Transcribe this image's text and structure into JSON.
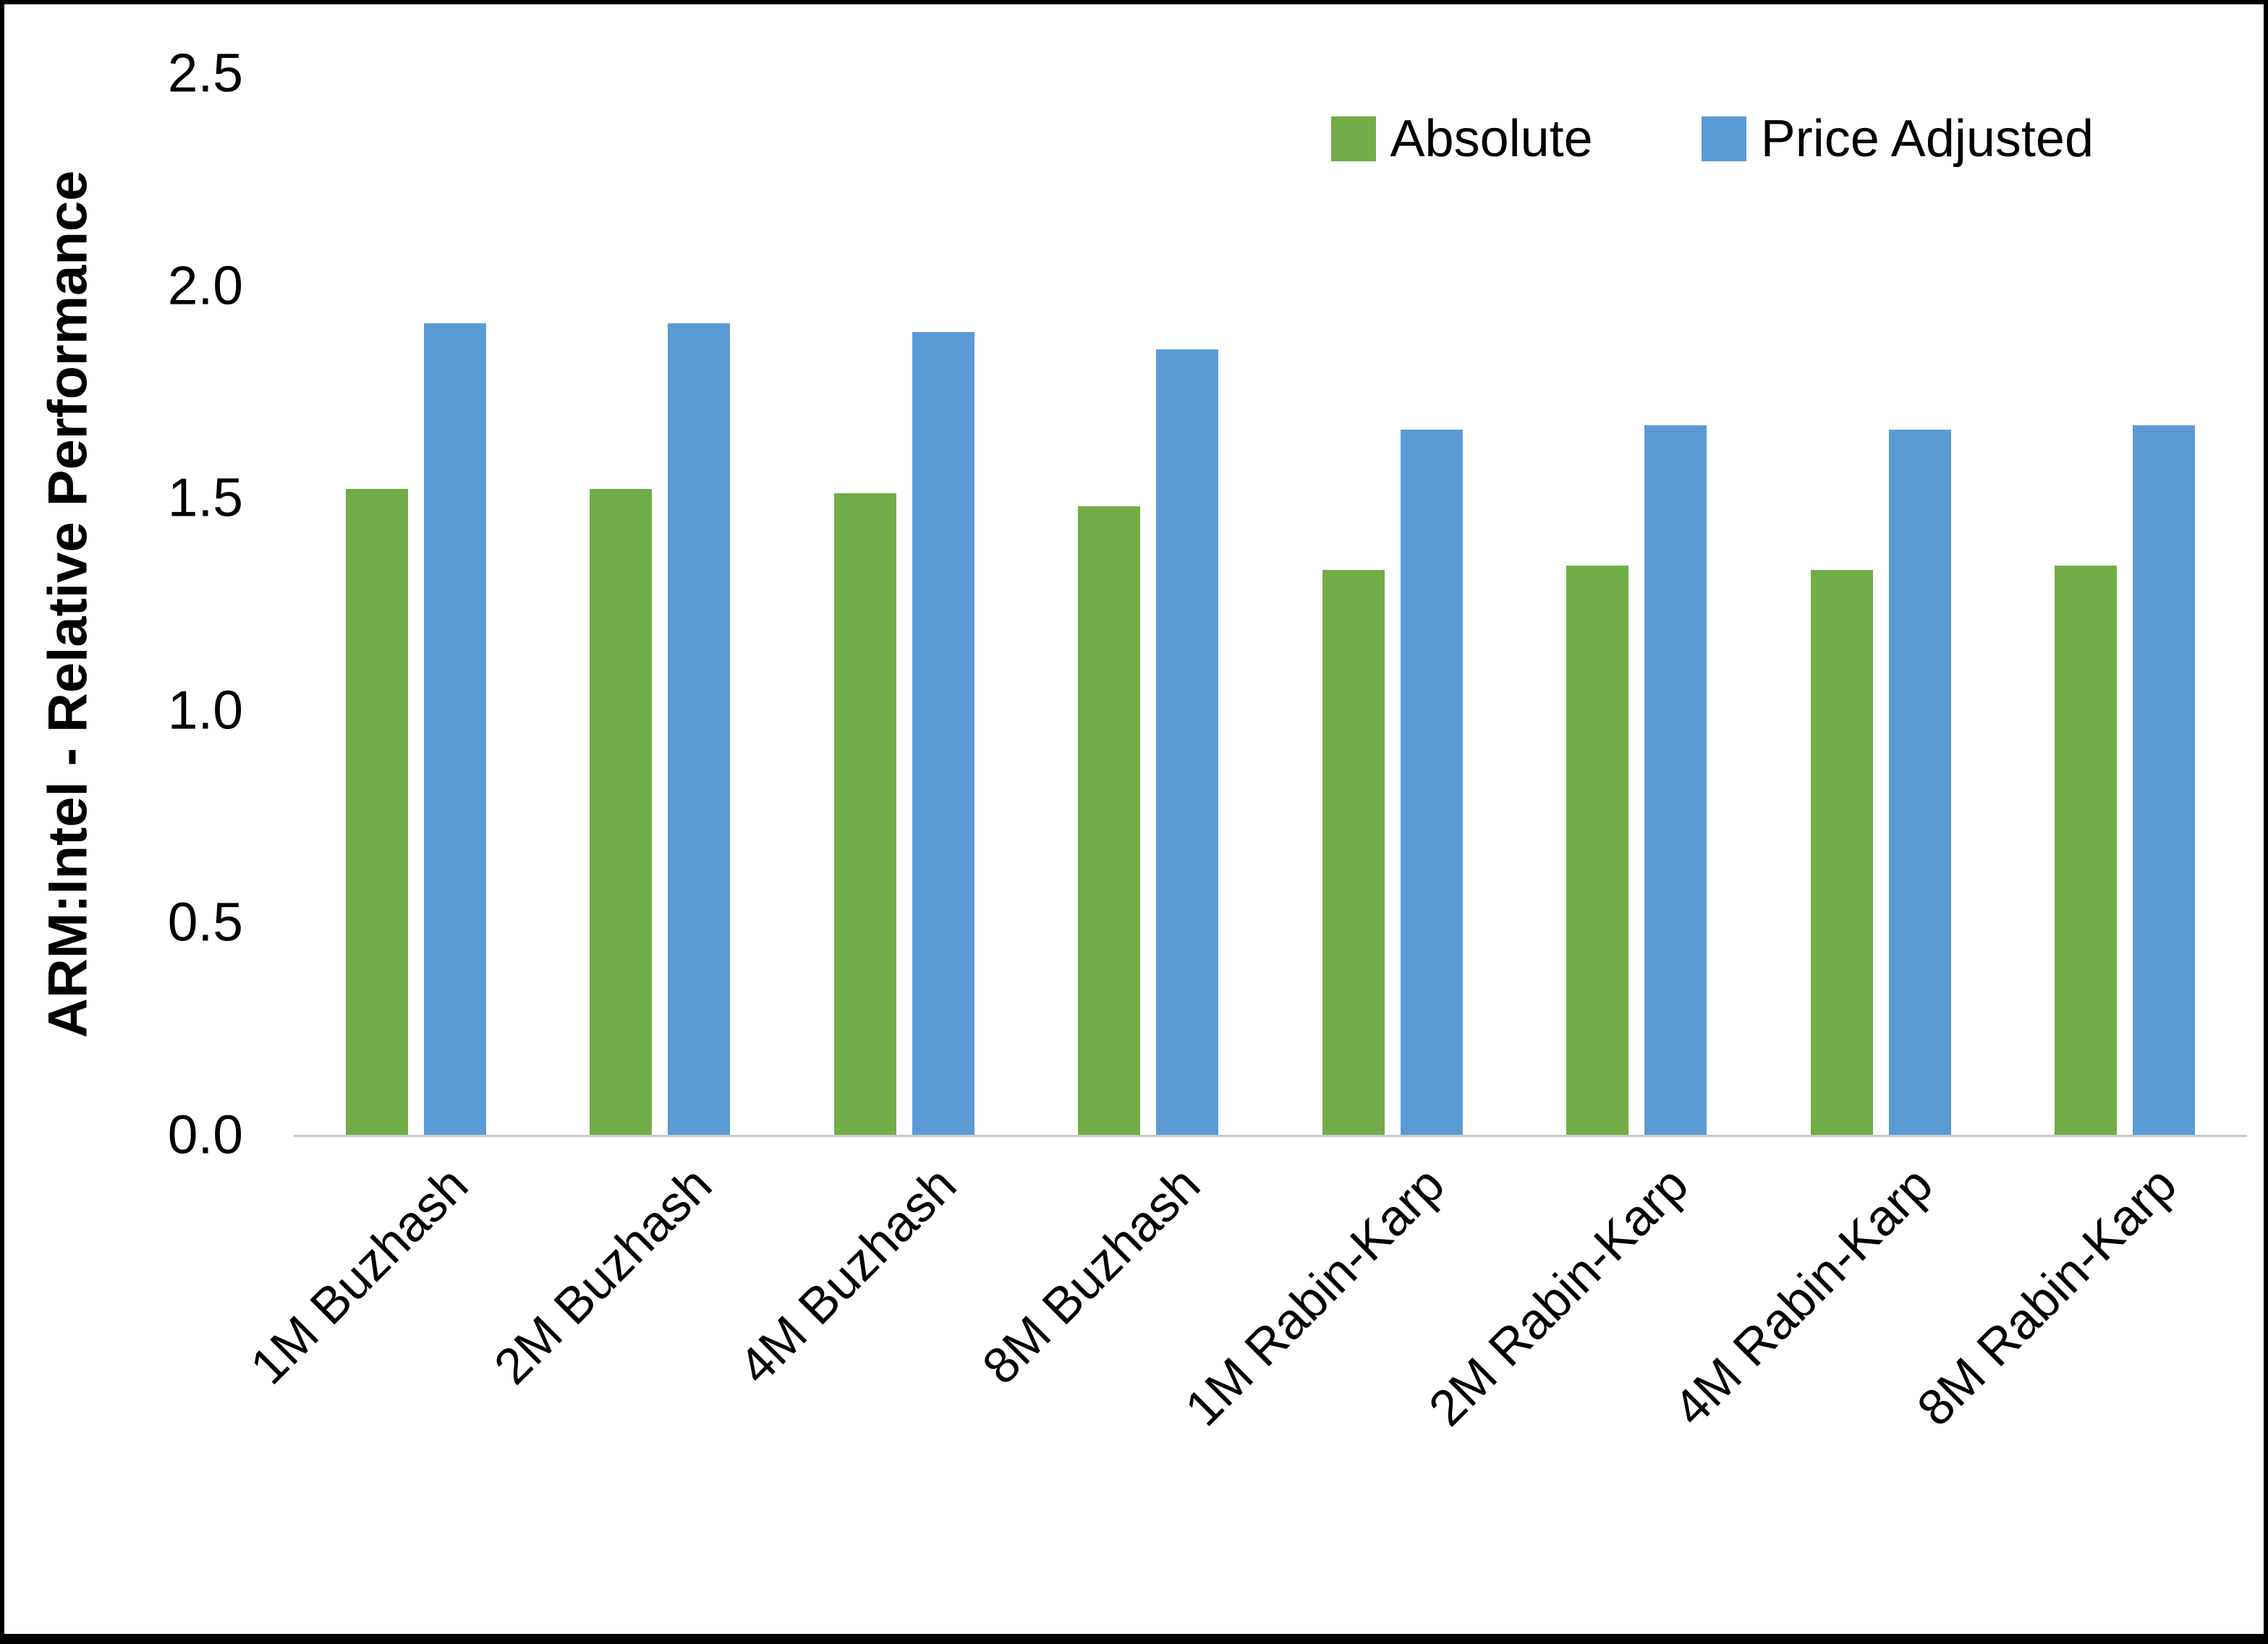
{
  "chart_data": {
    "type": "bar",
    "title": "",
    "xlabel": "",
    "ylabel": "ARM:Intel - Relative Performance",
    "ylim": [
      0,
      2.5
    ],
    "ytick_labels": [
      "0.0",
      "0.5",
      "1.0",
      "1.5",
      "2.0",
      "2.5"
    ],
    "categories": [
      "1M Buzhash",
      "2M Buzhash",
      "4M Buzhash",
      "8M Buzhash",
      "1M Rabin-Karp",
      "2M Rabin-Karp",
      "4M Rabin-Karp",
      "8M Rabin-Karp"
    ],
    "series": [
      {
        "name": "Absolute",
        "color": "#70AD47",
        "values": [
          1.52,
          1.52,
          1.51,
          1.48,
          1.33,
          1.34,
          1.33,
          1.34
        ]
      },
      {
        "name": "Price Adjusted",
        "color": "#5B9BD5",
        "values": [
          1.91,
          1.91,
          1.89,
          1.85,
          1.66,
          1.67,
          1.66,
          1.67
        ]
      }
    ],
    "legend_position": "top-right",
    "grid": false
  },
  "colors": {
    "background": "#FFFFFF",
    "border": "#000000",
    "axis_line": "#C9C9C9",
    "absolute_green": "#70AD47",
    "price_adjusted_blue": "#5B9BD5"
  }
}
